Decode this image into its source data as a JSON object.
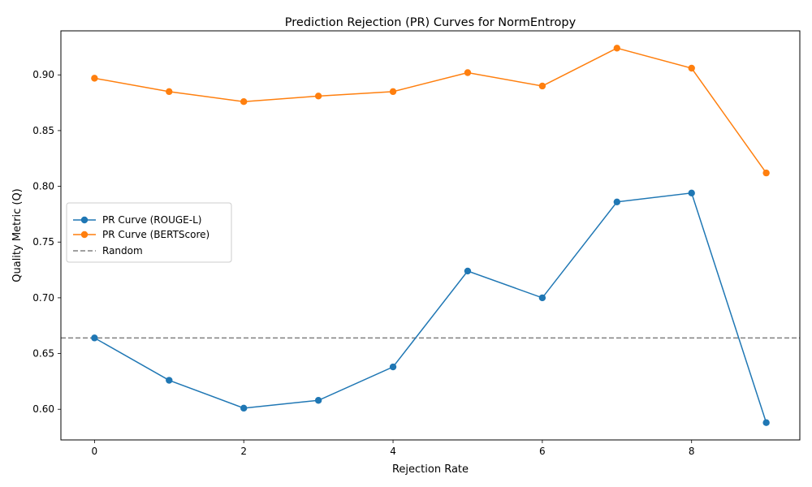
{
  "chart_data": {
    "type": "line",
    "title": "Prediction Rejection (PR) Curves for NormEntropy",
    "xlabel": "Rejection Rate",
    "ylabel": "Quality Metric (Q)",
    "x": [
      0,
      1,
      2,
      3,
      4,
      5,
      6,
      7,
      8,
      9
    ],
    "xlim": [
      -0.45,
      9.45
    ],
    "ylim": [
      0.5725,
      0.9395
    ],
    "xticks": [
      0,
      2,
      4,
      6,
      8
    ],
    "xtick_labels": [
      "0",
      "2",
      "4",
      "6",
      "8"
    ],
    "yticks": [
      0.6,
      0.65,
      0.7,
      0.75,
      0.8,
      0.85,
      0.9
    ],
    "ytick_labels": [
      "0.60",
      "0.65",
      "0.70",
      "0.75",
      "0.80",
      "0.85",
      "0.90"
    ],
    "series": [
      {
        "name": "PR Curve (ROUGE-L)",
        "color": "#1f77b4",
        "marker": "circle",
        "values": [
          0.664,
          0.626,
          0.601,
          0.608,
          0.638,
          0.724,
          0.7,
          0.786,
          0.794,
          0.588
        ]
      },
      {
        "name": "PR Curve (BERTScore)",
        "color": "#ff7f0e",
        "marker": "circle",
        "values": [
          0.897,
          0.885,
          0.876,
          0.881,
          0.885,
          0.902,
          0.89,
          0.924,
          0.906,
          0.812
        ]
      }
    ],
    "reference_lines": [
      {
        "name": "Random",
        "y": 0.664,
        "color": "#808080",
        "style": "dashed"
      }
    ],
    "grid": false,
    "legend_position": "center-left"
  }
}
